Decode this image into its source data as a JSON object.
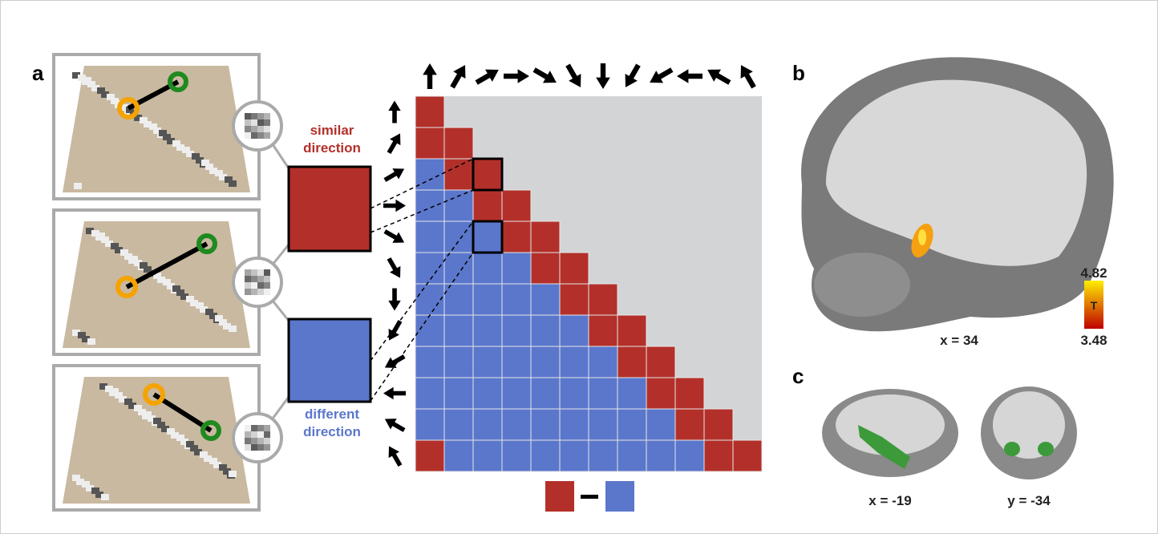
{
  "panel_a": {
    "label": "a",
    "similar": [
      "similar",
      "direction"
    ],
    "different": [
      "different",
      "direction"
    ]
  },
  "panel_b": {
    "label": "b",
    "slice": "x = 34",
    "colorbar": {
      "max": "4.82",
      "title": "T",
      "min": "3.48"
    }
  },
  "panel_c": {
    "label": "c",
    "slices": [
      "x = -19",
      "y = -34"
    ]
  }
}
